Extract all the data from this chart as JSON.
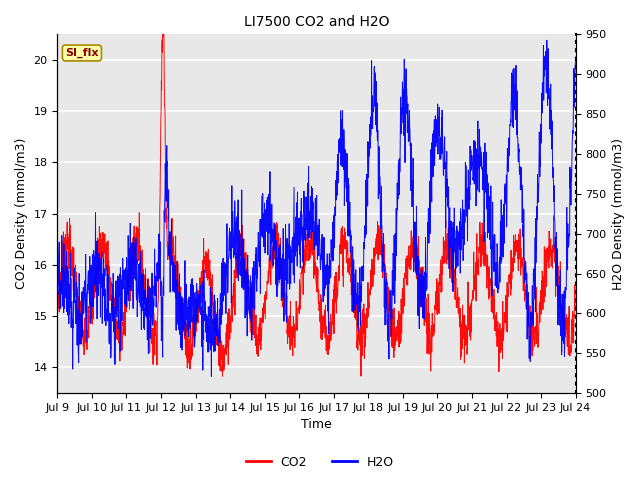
{
  "title": "LI7500 CO2 and H2O",
  "xlabel": "Time",
  "ylabel_left": "CO2 Density (mmol/m3)",
  "ylabel_right": "H2O Density (mmol/m3)",
  "ylim_left": [
    13.5,
    20.5
  ],
  "ylim_right": [
    500,
    950
  ],
  "xtick_labels": [
    "Jul 9",
    "Jul 10",
    "Jul 11",
    "Jul 12",
    "Jul 13",
    "Jul 14",
    "Jul 15",
    "Jul 16",
    "Jul 17",
    "Jul 18",
    "Jul 19",
    "Jul 20",
    "Jul 21",
    "Jul 22",
    "Jul 23",
    "Jul 24"
  ],
  "legend_labels": [
    "CO2",
    "H2O"
  ],
  "legend_colors": [
    "red",
    "blue"
  ],
  "co2_color": "red",
  "h2o_color": "blue",
  "annotation_text": "SI_flx",
  "background_color": "#e8e8e8",
  "grid_color": "white",
  "title_fontsize": 10,
  "axis_label_fontsize": 9,
  "tick_fontsize": 8,
  "n_points": 2000
}
